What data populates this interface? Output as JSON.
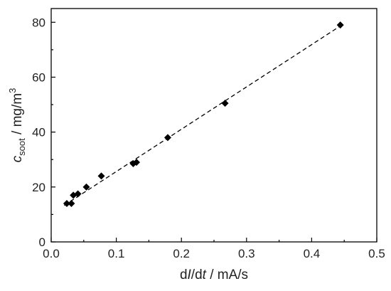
{
  "chart_data": {
    "type": "scatter",
    "title": "",
    "xlabel": {
      "prefix": "d",
      "italic_var": "I",
      "mid": "/d",
      "italic_var2": "t",
      "suffix": " / mA/s"
    },
    "ylabel": {
      "italic_var": "c",
      "subscript": "soot",
      "suffix": " / mg/m",
      "superscript": "3"
    },
    "xlim": [
      0,
      0.5
    ],
    "ylim": [
      0,
      85
    ],
    "xticks": [
      {
        "value": 0.0,
        "label": "0.0"
      },
      {
        "value": 0.1,
        "label": "0.1"
      },
      {
        "value": 0.2,
        "label": "0.2"
      },
      {
        "value": 0.3,
        "label": "0.3"
      },
      {
        "value": 0.4,
        "label": "0.4"
      },
      {
        "value": 0.5,
        "label": "0.5"
      }
    ],
    "yticks": [
      {
        "value": 0,
        "label": "0"
      },
      {
        "value": 20,
        "label": "20"
      },
      {
        "value": 40,
        "label": "40"
      },
      {
        "value": 60,
        "label": "60"
      },
      {
        "value": 80,
        "label": "80"
      }
    ],
    "grid": false,
    "legend": "none",
    "series": [
      {
        "marker": "diamond",
        "color": "#000000",
        "points": [
          {
            "x": 0.024,
            "y": 14
          },
          {
            "x": 0.031,
            "y": 14
          },
          {
            "x": 0.034,
            "y": 17
          },
          {
            "x": 0.041,
            "y": 17.5
          },
          {
            "x": 0.054,
            "y": 20
          },
          {
            "x": 0.077,
            "y": 24
          },
          {
            "x": 0.126,
            "y": 28.5
          },
          {
            "x": 0.131,
            "y": 29
          },
          {
            "x": 0.179,
            "y": 38
          },
          {
            "x": 0.267,
            "y": 50.5
          },
          {
            "x": 0.444,
            "y": 79
          }
        ]
      }
    ],
    "fit_line": {
      "style": "dashed",
      "color": "#000000",
      "x": [
        0.02,
        0.445
      ],
      "y": [
        13.3,
        78.8
      ]
    }
  }
}
